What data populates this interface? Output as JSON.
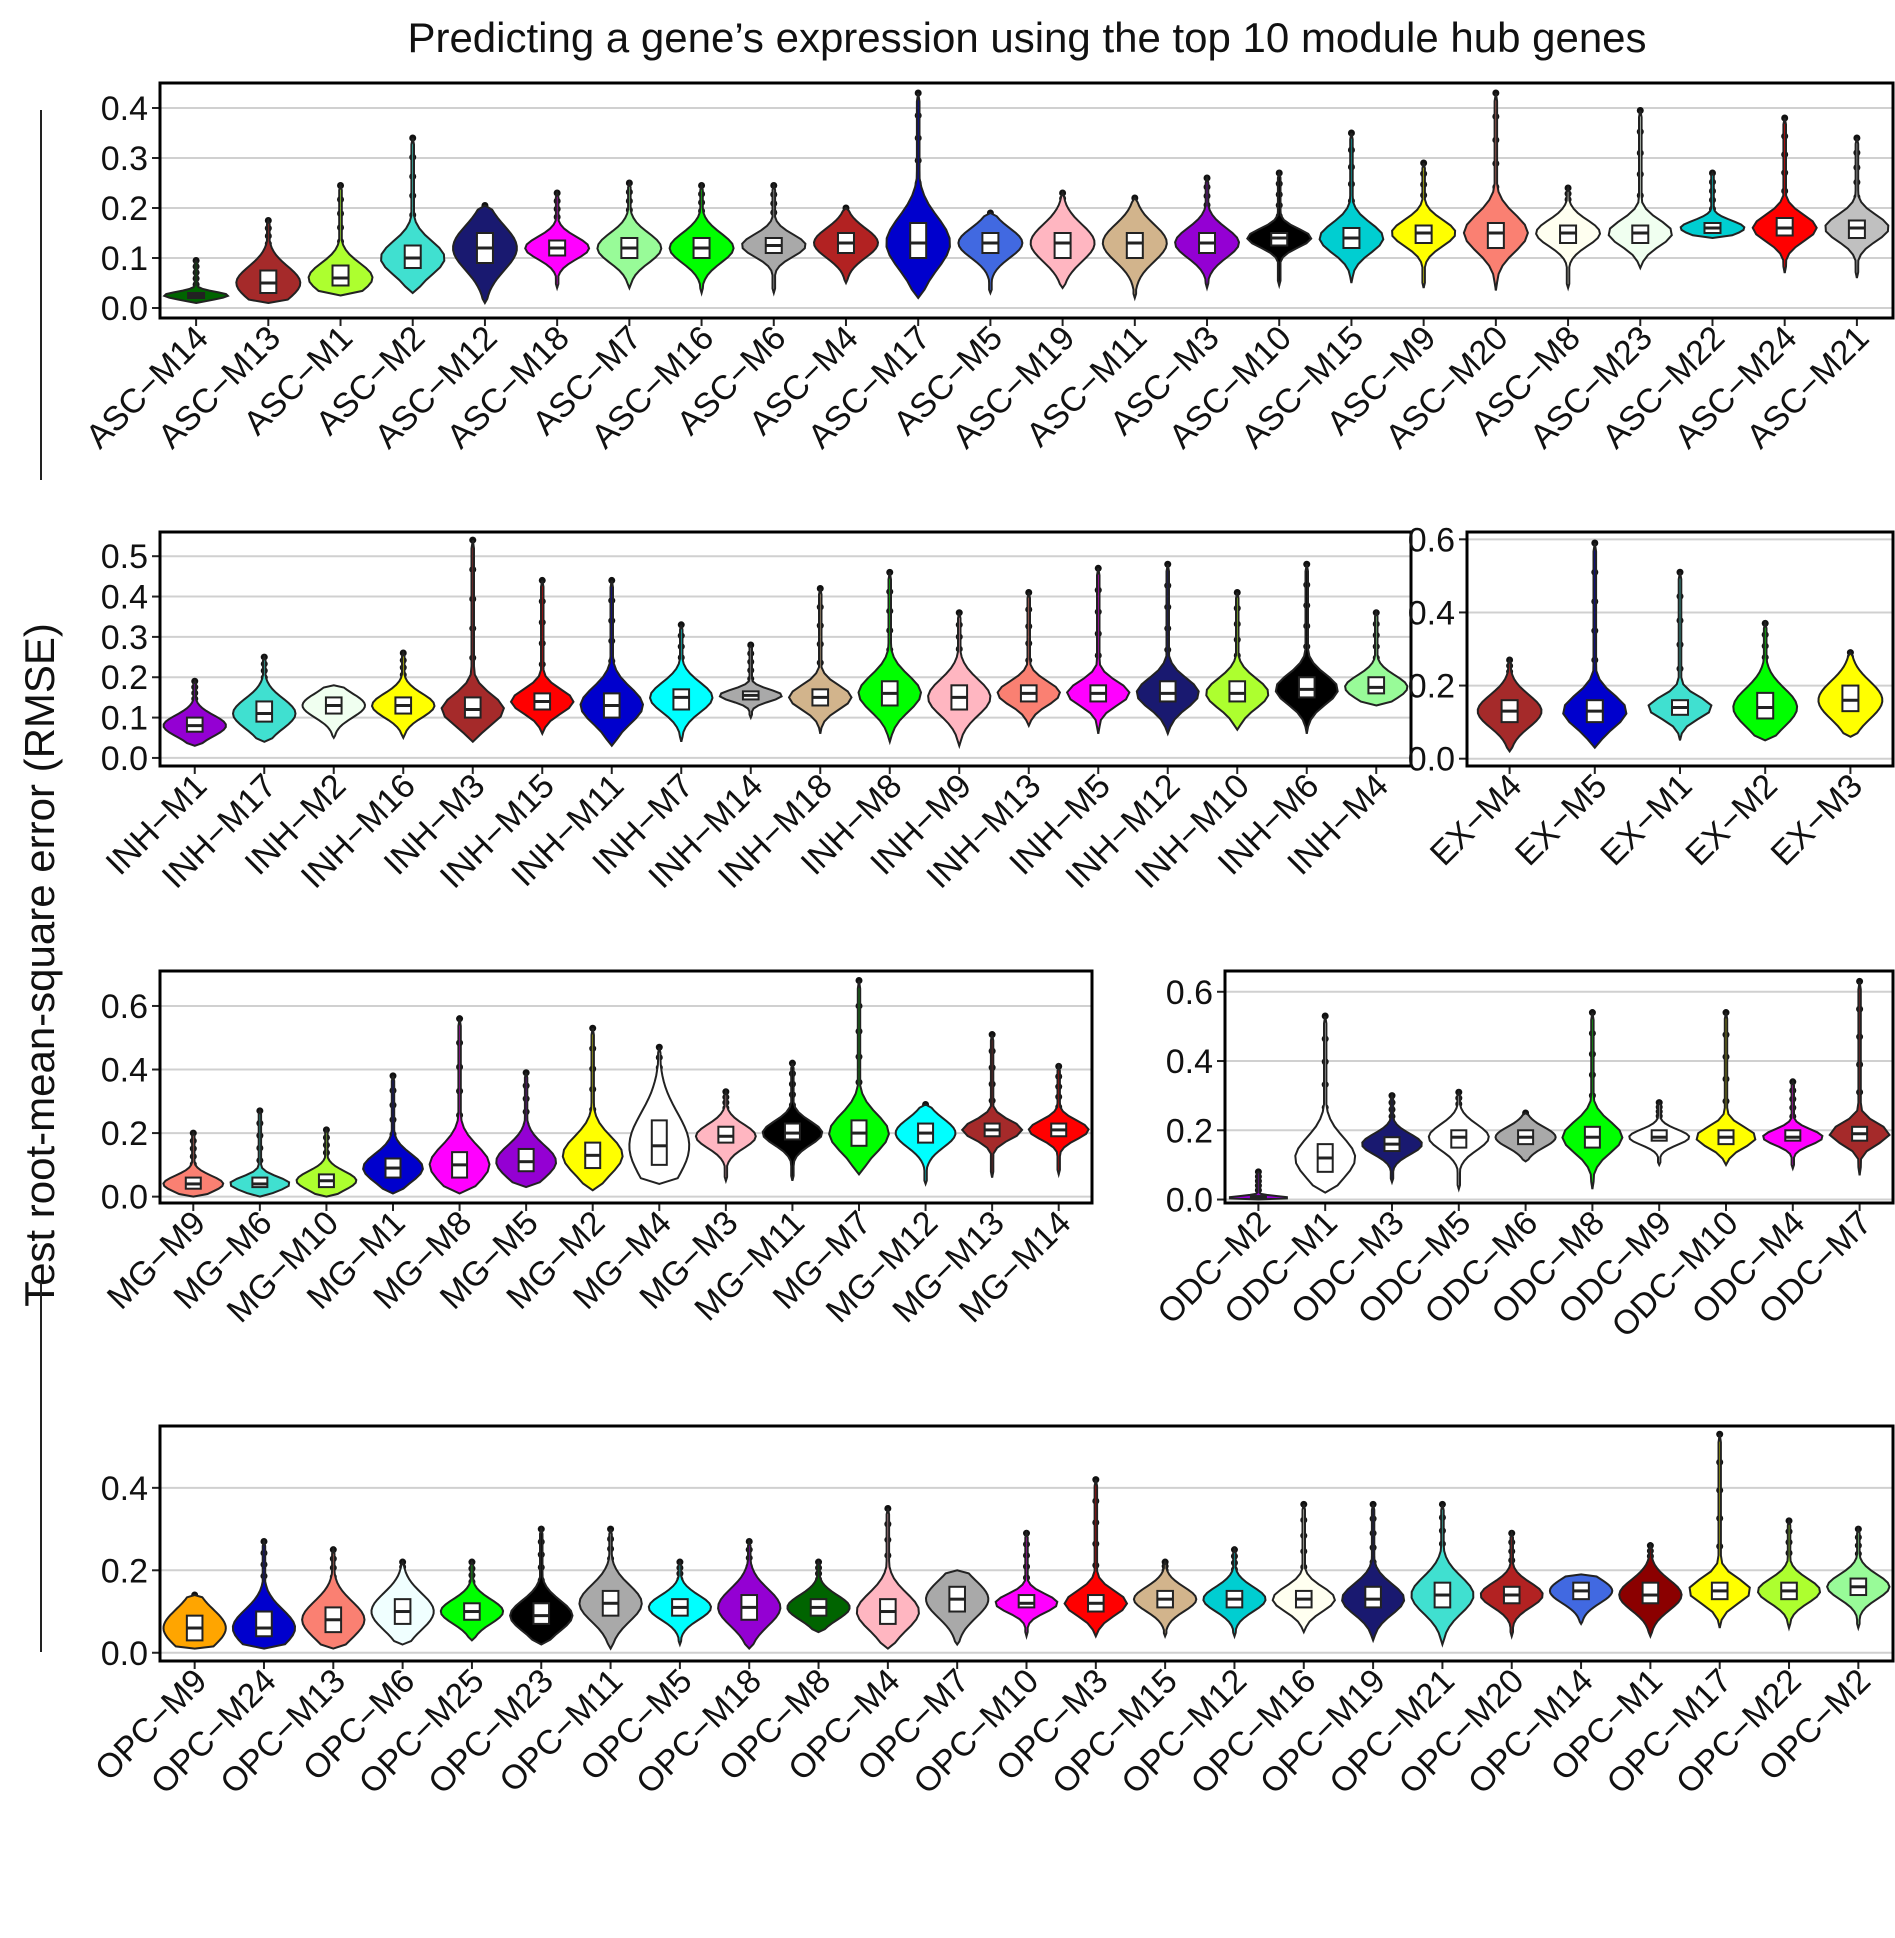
{
  "figure": {
    "title": "Predicting a gene’s expression using the top 10 module hub genes",
    "ylabel": "Test root-mean-square error (RMSE)"
  },
  "chart_data": [
    {
      "id": "asc",
      "type": "violin",
      "title": "",
      "xlabel": "",
      "ylabel": "Test root-mean-square error (RMSE)",
      "ylim": [
        -0.02,
        0.45
      ],
      "yticks": [
        0.0,
        0.1,
        0.2,
        0.3,
        0.4
      ],
      "ytick_labels": [
        "0.0",
        "0.1",
        "0.2",
        "0.3",
        "0.4"
      ],
      "grid": true,
      "categories": [
        "ASC−M14",
        "ASC−M13",
        "ASC−M1",
        "ASC−M2",
        "ASC−M12",
        "ASC−M18",
        "ASC−M7",
        "ASC−M16",
        "ASC−M6",
        "ASC−M4",
        "ASC−M17",
        "ASC−M5",
        "ASC−M19",
        "ASC−M11",
        "ASC−M3",
        "ASC−M10",
        "ASC−M15",
        "ASC−M9",
        "ASC−M20",
        "ASC−M8",
        "ASC−M23",
        "ASC−M22",
        "ASC−M24",
        "ASC−M21"
      ],
      "medians": [
        0.025,
        0.05,
        0.06,
        0.1,
        0.12,
        0.12,
        0.12,
        0.12,
        0.125,
        0.13,
        0.13,
        0.13,
        0.13,
        0.13,
        0.13,
        0.14,
        0.14,
        0.15,
        0.15,
        0.15,
        0.15,
        0.16,
        0.16,
        0.16
      ],
      "q1": [
        0.02,
        0.03,
        0.045,
        0.08,
        0.09,
        0.105,
        0.1,
        0.1,
        0.11,
        0.11,
        0.1,
        0.11,
        0.1,
        0.1,
        0.11,
        0.125,
        0.12,
        0.13,
        0.12,
        0.13,
        0.13,
        0.15,
        0.145,
        0.14
      ],
      "q3": [
        0.03,
        0.075,
        0.085,
        0.125,
        0.15,
        0.135,
        0.14,
        0.14,
        0.14,
        0.15,
        0.17,
        0.15,
        0.15,
        0.15,
        0.15,
        0.15,
        0.16,
        0.165,
        0.17,
        0.165,
        0.165,
        0.17,
        0.18,
        0.175
      ],
      "mins": [
        0.01,
        0.01,
        0.025,
        0.03,
        0.01,
        0.04,
        0.04,
        0.03,
        0.03,
        0.05,
        0.02,
        0.03,
        0.04,
        0.02,
        0.04,
        0.045,
        0.05,
        0.04,
        0.035,
        0.04,
        0.08,
        0.14,
        0.07,
        0.06
      ],
      "maxs": [
        0.095,
        0.175,
        0.245,
        0.34,
        0.205,
        0.23,
        0.25,
        0.245,
        0.245,
        0.2,
        0.43,
        0.19,
        0.23,
        0.22,
        0.26,
        0.27,
        0.35,
        0.29,
        0.43,
        0.24,
        0.395,
        0.27,
        0.38,
        0.34
      ],
      "colors": [
        "#006400",
        "#a52a2a",
        "#adff2f",
        "#40e0d0",
        "#191970",
        "#ff00ff",
        "#98fb98",
        "#00ff00",
        "#a9a9a9",
        "#b22222",
        "#0000cd",
        "#4169e1",
        "#ffb6c1",
        "#d2b48c",
        "#9400d3",
        "#000000",
        "#00ced1",
        "#ffff00",
        "#fa8072",
        "#fffff0",
        "#f0fff0",
        "#00ced1",
        "#ff0000",
        "#c0c0c0"
      ]
    },
    {
      "id": "inh",
      "type": "violin",
      "title": "",
      "xlabel": "",
      "ylabel": "",
      "ylim": [
        -0.02,
        0.56
      ],
      "yticks": [
        0.0,
        0.1,
        0.2,
        0.3,
        0.4,
        0.5
      ],
      "ytick_labels": [
        "0.0",
        "0.1",
        "0.2",
        "0.3",
        "0.4",
        "0.5"
      ],
      "grid": true,
      "categories": [
        "INH−M1",
        "INH−M17",
        "INH−M2",
        "INH−M16",
        "INH−M3",
        "INH−M15",
        "INH−M11",
        "INH−M7",
        "INH−M14",
        "INH−M18",
        "INH−M8",
        "INH−M9",
        "INH−M13",
        "INH−M5",
        "INH−M12",
        "INH−M10",
        "INH−M6",
        "INH−M4"
      ],
      "medians": [
        0.08,
        0.11,
        0.13,
        0.13,
        0.12,
        0.14,
        0.13,
        0.15,
        0.155,
        0.15,
        0.16,
        0.15,
        0.16,
        0.16,
        0.16,
        0.16,
        0.17,
        0.175
      ],
      "q1": [
        0.065,
        0.09,
        0.11,
        0.11,
        0.1,
        0.12,
        0.1,
        0.12,
        0.145,
        0.13,
        0.13,
        0.12,
        0.14,
        0.14,
        0.14,
        0.14,
        0.15,
        0.16
      ],
      "q3": [
        0.1,
        0.14,
        0.15,
        0.15,
        0.15,
        0.16,
        0.16,
        0.17,
        0.165,
        0.17,
        0.19,
        0.18,
        0.18,
        0.18,
        0.19,
        0.19,
        0.2,
        0.2
      ],
      "mins": [
        0.03,
        0.04,
        0.05,
        0.05,
        0.04,
        0.06,
        0.03,
        0.04,
        0.1,
        0.06,
        0.04,
        0.03,
        0.08,
        0.06,
        0.06,
        0.07,
        0.06,
        0.13
      ],
      "maxs": [
        0.19,
        0.25,
        0.18,
        0.26,
        0.54,
        0.44,
        0.44,
        0.33,
        0.28,
        0.42,
        0.46,
        0.36,
        0.41,
        0.47,
        0.48,
        0.41,
        0.48,
        0.36
      ],
      "colors": [
        "#9400d3",
        "#40e0d0",
        "#f0fff0",
        "#ffff00",
        "#a52a2a",
        "#ff0000",
        "#0000cd",
        "#00ffff",
        "#a9a9a9",
        "#d2b48c",
        "#00ff00",
        "#ffb6c1",
        "#fa8072",
        "#ff00ff",
        "#191970",
        "#adff2f",
        "#000000",
        "#98fb98"
      ]
    },
    {
      "id": "ex",
      "type": "violin",
      "title": "",
      "xlabel": "",
      "ylabel": "",
      "ylim": [
        -0.02,
        0.62
      ],
      "yticks": [
        0.0,
        0.2,
        0.4,
        0.6
      ],
      "ytick_labels": [
        "0.0",
        "0.2",
        "0.4",
        "0.6"
      ],
      "grid": true,
      "categories": [
        "EX−M4",
        "EX−M5",
        "EX−M1",
        "EX−M2",
        "EX−M3"
      ],
      "medians": [
        0.13,
        0.13,
        0.14,
        0.14,
        0.16
      ],
      "q1": [
        0.1,
        0.1,
        0.12,
        0.11,
        0.13
      ],
      "q3": [
        0.16,
        0.16,
        0.16,
        0.18,
        0.2
      ],
      "mins": [
        0.02,
        0.03,
        0.05,
        0.05,
        0.06
      ],
      "maxs": [
        0.27,
        0.59,
        0.51,
        0.37,
        0.29
      ],
      "colors": [
        "#a52a2a",
        "#0000cd",
        "#40e0d0",
        "#00ff00",
        "#ffff00"
      ]
    },
    {
      "id": "mg",
      "type": "violin",
      "title": "",
      "xlabel": "",
      "ylabel": "",
      "ylim": [
        -0.02,
        0.71
      ],
      "yticks": [
        0.0,
        0.2,
        0.4,
        0.6
      ],
      "ytick_labels": [
        "0.0",
        "0.2",
        "0.4",
        "0.6"
      ],
      "grid": true,
      "categories": [
        "MG−M9",
        "MG−M6",
        "MG−M10",
        "MG−M1",
        "MG−M8",
        "MG−M5",
        "MG−M2",
        "MG−M4",
        "MG−M3",
        "MG−M11",
        "MG−M7",
        "MG−M12",
        "MG−M13",
        "MG−M14"
      ],
      "medians": [
        0.04,
        0.04,
        0.05,
        0.09,
        0.1,
        0.11,
        0.13,
        0.16,
        0.19,
        0.2,
        0.2,
        0.2,
        0.21,
        0.21
      ],
      "q1": [
        0.025,
        0.03,
        0.03,
        0.06,
        0.06,
        0.08,
        0.09,
        0.1,
        0.17,
        0.18,
        0.16,
        0.17,
        0.19,
        0.19
      ],
      "q3": [
        0.06,
        0.06,
        0.07,
        0.12,
        0.14,
        0.15,
        0.17,
        0.24,
        0.22,
        0.23,
        0.24,
        0.23,
        0.23,
        0.23
      ],
      "mins": [
        0.0,
        0.0,
        0.0,
        0.01,
        0.01,
        0.03,
        0.02,
        0.04,
        0.05,
        0.05,
        0.07,
        0.04,
        0.06,
        0.07
      ],
      "maxs": [
        0.2,
        0.27,
        0.21,
        0.38,
        0.56,
        0.39,
        0.53,
        0.47,
        0.33,
        0.42,
        0.68,
        0.29,
        0.51,
        0.41
      ],
      "colors": [
        "#fa8072",
        "#40e0d0",
        "#adff2f",
        "#0000cd",
        "#ff00ff",
        "#9400d3",
        "#ffff00",
        "#ffffff",
        "#ffb6c1",
        "#000000",
        "#00ff00",
        "#00ffff",
        "#a52a2a",
        "#ff0000"
      ]
    },
    {
      "id": "odc",
      "type": "violin",
      "title": "",
      "xlabel": "",
      "ylabel": "",
      "ylim": [
        -0.01,
        0.66
      ],
      "yticks": [
        0.0,
        0.2,
        0.4,
        0.6
      ],
      "ytick_labels": [
        "0.0",
        "0.2",
        "0.4",
        "0.6"
      ],
      "grid": true,
      "categories": [
        "ODC−M2",
        "ODC−M1",
        "ODC−M3",
        "ODC−M5",
        "ODC−M6",
        "ODC−M8",
        "ODC−M9",
        "ODC−M10",
        "ODC−M4",
        "ODC−M7"
      ],
      "medians": [
        0.005,
        0.12,
        0.16,
        0.18,
        0.18,
        0.18,
        0.18,
        0.18,
        0.18,
        0.19
      ],
      "q1": [
        0.003,
        0.08,
        0.14,
        0.15,
        0.16,
        0.15,
        0.17,
        0.16,
        0.17,
        0.17
      ],
      "q3": [
        0.01,
        0.16,
        0.18,
        0.2,
        0.2,
        0.21,
        0.2,
        0.2,
        0.2,
        0.21
      ],
      "mins": [
        0.0,
        0.02,
        0.05,
        0.03,
        0.11,
        0.03,
        0.1,
        0.1,
        0.09,
        0.07
      ],
      "maxs": [
        0.08,
        0.53,
        0.3,
        0.31,
        0.25,
        0.54,
        0.28,
        0.54,
        0.34,
        0.63
      ],
      "colors": [
        "#9400d3",
        "#ffffff",
        "#191970",
        "#ffffff",
        "#a9a9a9",
        "#00ff00",
        "#ffffff",
        "#ffff00",
        "#ff00ff",
        "#a52a2a"
      ]
    },
    {
      "id": "opc",
      "type": "violin",
      "title": "",
      "xlabel": "",
      "ylabel": "",
      "ylim": [
        -0.02,
        0.55
      ],
      "yticks": [
        0.0,
        0.2,
        0.4
      ],
      "ytick_labels": [
        "0.0",
        "0.2",
        "0.4"
      ],
      "grid": true,
      "categories": [
        "OPC−M9",
        "OPC−M24",
        "OPC−M13",
        "OPC−M6",
        "OPC−M25",
        "OPC−M23",
        "OPC−M11",
        "OPC−M5",
        "OPC−M18",
        "OPC−M8",
        "OPC−M4",
        "OPC−M7",
        "OPC−M10",
        "OPC−M3",
        "OPC−M15",
        "OPC−M12",
        "OPC−M16",
        "OPC−M19",
        "OPC−M21",
        "OPC−M20",
        "OPC−M14",
        "OPC−M1",
        "OPC−M17",
        "OPC−M22",
        "OPC−M2"
      ],
      "medians": [
        0.06,
        0.06,
        0.08,
        0.1,
        0.1,
        0.09,
        0.12,
        0.11,
        0.11,
        0.11,
        0.1,
        0.13,
        0.12,
        0.12,
        0.13,
        0.13,
        0.13,
        0.13,
        0.14,
        0.14,
        0.15,
        0.14,
        0.15,
        0.15,
        0.16
      ],
      "q1": [
        0.03,
        0.04,
        0.05,
        0.07,
        0.08,
        0.07,
        0.09,
        0.09,
        0.08,
        0.09,
        0.07,
        0.1,
        0.11,
        0.1,
        0.11,
        0.11,
        0.11,
        0.11,
        0.11,
        0.12,
        0.13,
        0.12,
        0.13,
        0.13,
        0.14
      ],
      "q3": [
        0.09,
        0.1,
        0.11,
        0.13,
        0.12,
        0.12,
        0.15,
        0.13,
        0.14,
        0.13,
        0.13,
        0.16,
        0.14,
        0.14,
        0.15,
        0.15,
        0.15,
        0.16,
        0.17,
        0.16,
        0.17,
        0.17,
        0.17,
        0.17,
        0.18
      ],
      "mins": [
        0.01,
        0.01,
        0.01,
        0.02,
        0.03,
        0.02,
        0.01,
        0.02,
        0.01,
        0.05,
        0.01,
        0.02,
        0.04,
        0.04,
        0.04,
        0.04,
        0.05,
        0.03,
        0.02,
        0.04,
        0.07,
        0.04,
        0.06,
        0.06,
        0.06
      ],
      "maxs": [
        0.14,
        0.27,
        0.25,
        0.22,
        0.22,
        0.3,
        0.3,
        0.22,
        0.27,
        0.22,
        0.35,
        0.2,
        0.29,
        0.42,
        0.22,
        0.25,
        0.36,
        0.36,
        0.36,
        0.29,
        0.19,
        0.26,
        0.53,
        0.32,
        0.3
      ],
      "colors": [
        "#ffa500",
        "#0000cd",
        "#fa8072",
        "#f0ffff",
        "#00ff00",
        "#000000",
        "#a9a9a9",
        "#00ffff",
        "#9400d3",
        "#006400",
        "#ffb6c1",
        "#a9a9a9",
        "#ff00ff",
        "#ff0000",
        "#d2b48c",
        "#00ced1",
        "#fffff0",
        "#191970",
        "#40e0d0",
        "#b22222",
        "#4169e1",
        "#8b0000",
        "#ffff00",
        "#adff2f",
        "#98fb98"
      ]
    }
  ]
}
